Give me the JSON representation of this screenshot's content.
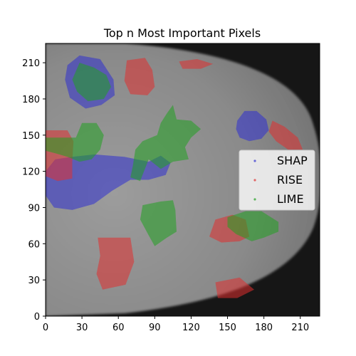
{
  "chart_data": {
    "type": "heatmap",
    "title": "Top n Most Important Pixels",
    "xlabel": "",
    "ylabel": "",
    "xlim": [
      0,
      226
    ],
    "ylim": [
      0,
      226
    ],
    "x_ticks": [
      0,
      30,
      60,
      90,
      120,
      150,
      180,
      210
    ],
    "y_ticks": [
      0,
      30,
      60,
      90,
      120,
      150,
      180,
      210
    ],
    "grid": false,
    "legend_position": "center-right",
    "colors": {
      "SHAP": "#3030d0",
      "RISE": "#e03030",
      "LIME": "#20a020"
    },
    "series": [
      {
        "name": "SHAP",
        "regions": [
          {
            "points": [
              [
                18,
                208
              ],
              [
                28,
                216
              ],
              [
                45,
                213
              ],
              [
                56,
                196
              ],
              [
                57,
                183
              ],
              [
                46,
                175
              ],
              [
                33,
                172
              ],
              [
                20,
                181
              ],
              [
                16,
                196
              ]
            ]
          },
          {
            "points": [
              [
                0,
                100
              ],
              [
                0,
                120
              ],
              [
                8,
                130
              ],
              [
                22,
                132
              ],
              [
                40,
                134
              ],
              [
                65,
                132
              ],
              [
                85,
                128
              ],
              [
                95,
                133
              ],
              [
                103,
                127
              ],
              [
                99,
                117
              ],
              [
                85,
                113
              ],
              [
                70,
                113
              ],
              [
                55,
                104
              ],
              [
                40,
                93
              ],
              [
                22,
                88
              ],
              [
                7,
                90
              ]
            ]
          },
          {
            "points": [
              [
                158,
                162
              ],
              [
                164,
                170
              ],
              [
                174,
                170
              ],
              [
                182,
                163
              ],
              [
                184,
                154
              ],
              [
                178,
                147
              ],
              [
                168,
                145
              ],
              [
                160,
                148
              ],
              [
                157,
                155
              ]
            ]
          }
        ]
      },
      {
        "name": "RISE",
        "regions": [
          {
            "points": [
              [
                67,
                212
              ],
              [
                82,
                214
              ],
              [
                88,
                204
              ],
              [
                90,
                190
              ],
              [
                84,
                183
              ],
              [
                70,
                184
              ],
              [
                65,
                195
              ]
            ]
          },
          {
            "points": [
              [
                110,
                211
              ],
              [
                125,
                213
              ],
              [
                138,
                209
              ],
              [
                128,
                205
              ],
              [
                113,
                205
              ]
            ]
          },
          {
            "points": [
              [
                0,
                154
              ],
              [
                18,
                154
              ],
              [
                23,
                145
              ],
              [
                22,
                128
              ],
              [
                22,
                114
              ],
              [
                10,
                112
              ],
              [
                0,
                116
              ]
            ]
          },
          {
            "points": [
              [
                187,
                162
              ],
              [
                197,
                157
              ],
              [
                208,
                148
              ],
              [
                212,
                138
              ],
              [
                200,
                138
              ],
              [
                190,
                145
              ],
              [
                184,
                153
              ]
            ]
          },
          {
            "points": [
              [
                140,
                80
              ],
              [
                154,
                84
              ],
              [
                165,
                80
              ],
              [
                168,
                66
              ],
              [
                160,
                62
              ],
              [
                145,
                61
              ],
              [
                135,
                66
              ]
            ]
          },
          {
            "points": [
              [
                43,
                65
              ],
              [
                70,
                65
              ],
              [
                73,
                45
              ],
              [
                66,
                26
              ],
              [
                47,
                22
              ],
              [
                42,
                35
              ],
              [
                45,
                50
              ]
            ]
          },
          {
            "points": [
              [
                140,
                28
              ],
              [
                160,
                32
              ],
              [
                172,
                22
              ],
              [
                158,
                15
              ],
              [
                142,
                15
              ]
            ]
          }
        ]
      },
      {
        "name": "LIME",
        "regions": [
          {
            "points": [
              [
                28,
                210
              ],
              [
                40,
                206
              ],
              [
                50,
                200
              ],
              [
                54,
                190
              ],
              [
                48,
                180
              ],
              [
                35,
                178
              ],
              [
                26,
                186
              ],
              [
                22,
                196
              ]
            ]
          },
          {
            "points": [
              [
                0,
                148
              ],
              [
                12,
                148
              ],
              [
                25,
                148
              ],
              [
                30,
                160
              ],
              [
                42,
                160
              ],
              [
                48,
                150
              ],
              [
                45,
                138
              ],
              [
                38,
                130
              ],
              [
                28,
                128
              ],
              [
                18,
                132
              ],
              [
                8,
                135
              ],
              [
                0,
                137
              ]
            ]
          },
          {
            "points": [
              [
                95,
                160
              ],
              [
                100,
                168
              ],
              [
                105,
                175
              ],
              [
                108,
                163
              ],
              [
                120,
                162
              ],
              [
                128,
                155
              ],
              [
                120,
                148
              ],
              [
                115,
                140
              ],
              [
                118,
                130
              ],
              [
                105,
                128
              ],
              [
                95,
                122
              ],
              [
                85,
                130
              ],
              [
                78,
                112
              ],
              [
                70,
                115
              ],
              [
                72,
                125
              ],
              [
                74,
                138
              ],
              [
                80,
                145
              ],
              [
                92,
                150
              ]
            ]
          },
          {
            "points": [
              [
                80,
                92
              ],
              [
                95,
                95
              ],
              [
                105,
                96
              ],
              [
                107,
                88
              ],
              [
                108,
                70
              ],
              [
                100,
                65
              ],
              [
                90,
                58
              ],
              [
                85,
                67
              ],
              [
                78,
                80
              ]
            ]
          },
          {
            "points": [
              [
                150,
                82
              ],
              [
                165,
                87
              ],
              [
                178,
                87
              ],
              [
                192,
                78
              ],
              [
                192,
                70
              ],
              [
                180,
                65
              ],
              [
                170,
                62
              ],
              [
                157,
                68
              ],
              [
                150,
                74
              ]
            ]
          }
        ]
      }
    ]
  }
}
